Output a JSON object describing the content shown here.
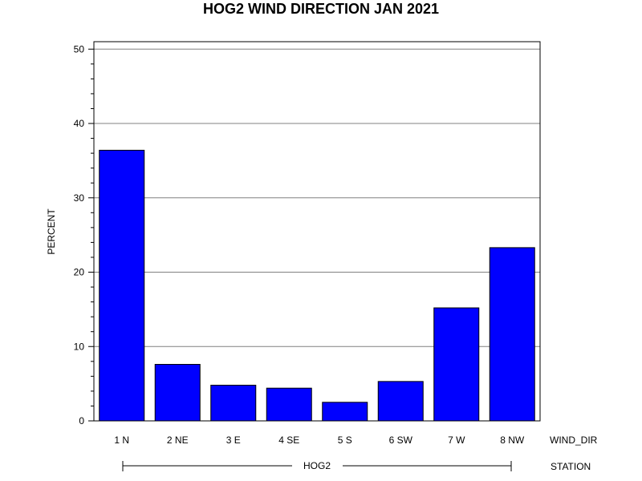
{
  "chart_data": {
    "type": "bar",
    "title": "HOG2 WIND DIRECTION JAN 2021",
    "ylabel": "PERCENT",
    "xlabel": "WIND_DIR",
    "group_axis_label": "STATION",
    "group_name": "HOG2",
    "categories": [
      "1 N",
      "2 NE",
      "3 E",
      "4 SE",
      "5 S",
      "6 SW",
      "7 W",
      "8 NW"
    ],
    "values": [
      36.4,
      7.6,
      4.8,
      4.4,
      2.5,
      5.3,
      15.2,
      23.3
    ],
    "ylim": [
      0,
      51
    ],
    "yticks": [
      0,
      10,
      20,
      30,
      40,
      50
    ],
    "ytick_labels": [
      "0",
      "10",
      "20",
      "30",
      "40",
      "50"
    ],
    "grid": true,
    "legend": "none",
    "bar_color": "#0000ff",
    "bar_edge_color": "#000000",
    "grid_color": "#808080"
  }
}
